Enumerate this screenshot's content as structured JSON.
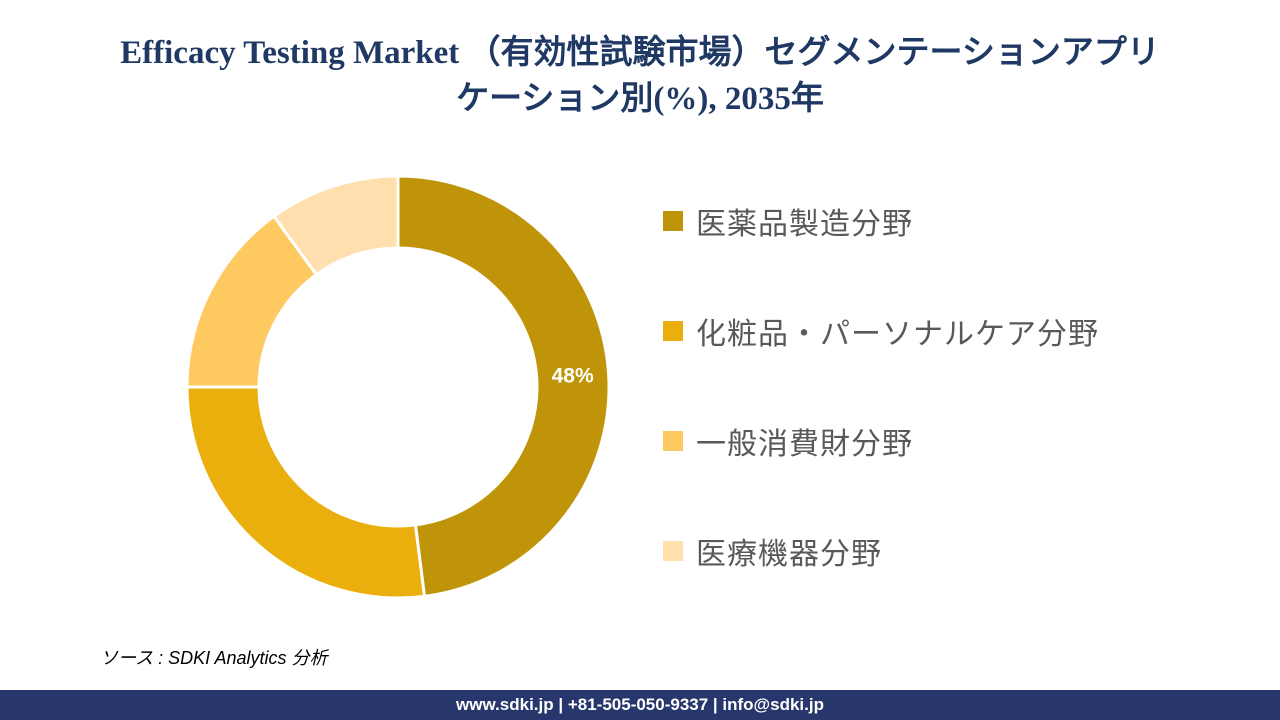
{
  "title": {
    "line1": "Efficacy Testing Market （有効性試験市場）セグメンテーションアプリ",
    "line2": "ケーション別(%), 2035年"
  },
  "chart_data": {
    "type": "pie",
    "subtype": "donut",
    "unit": "%",
    "start_angle_deg": 0,
    "direction": "clockwise",
    "inner_radius_ratio": 0.66,
    "legend_position": "right",
    "segments": [
      {
        "label": "医薬品製造分野",
        "value": 48,
        "color": "#BF9409",
        "data_label": "48%"
      },
      {
        "label": "化粧品・パーソナルケア分野",
        "value": 27,
        "color": "#EBAF0D",
        "data_label": ""
      },
      {
        "label": "一般消費財分野",
        "value": 15,
        "color": "#FFC961",
        "data_label": ""
      },
      {
        "label": "医療機器分野",
        "value": 10,
        "color": "#FFDFAE",
        "data_label": ""
      }
    ],
    "data_label_color": "#FFFFFF"
  },
  "source": "ソース : SDKI Analytics  分析",
  "footer": {
    "text": "www.sdki.jp | +81-505-050-9337 | info@sdki.jp",
    "bg_color": "#28376B"
  },
  "colors": {
    "title_text": "#1F3864",
    "legend_text": "#595959"
  }
}
